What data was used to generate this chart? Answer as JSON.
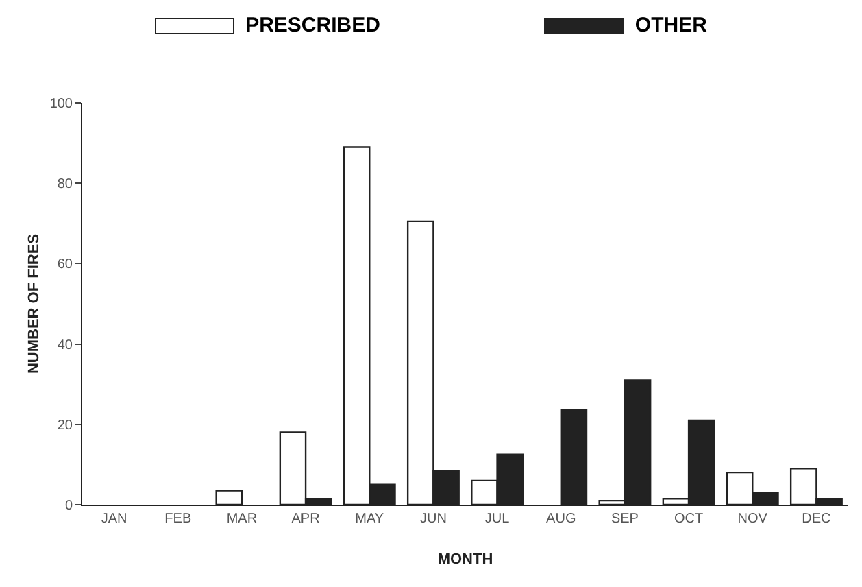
{
  "chart_data": {
    "type": "bar",
    "xlabel": "MONTH",
    "ylabel": "NUMBER OF FIRES",
    "categories": [
      "JAN",
      "FEB",
      "MAR",
      "APR",
      "MAY",
      "JUN",
      "JUL",
      "AUG",
      "SEP",
      "OCT",
      "NOV",
      "DEC"
    ],
    "series": [
      {
        "name": "PRESCRIBED",
        "color": "#ffffff",
        "values": [
          0,
          0,
          3.5,
          18,
          89,
          70.5,
          6,
          0,
          1,
          1.5,
          8,
          9
        ]
      },
      {
        "name": "OTHER",
        "color": "#222222",
        "values": [
          0,
          0,
          0,
          1.5,
          5,
          8.5,
          12.5,
          23.5,
          31,
          21,
          3,
          1.5
        ]
      }
    ],
    "ylim": [
      0,
      100
    ],
    "yticks": [
      0,
      20,
      40,
      60,
      80,
      100
    ],
    "grid": false,
    "legend": "top"
  }
}
